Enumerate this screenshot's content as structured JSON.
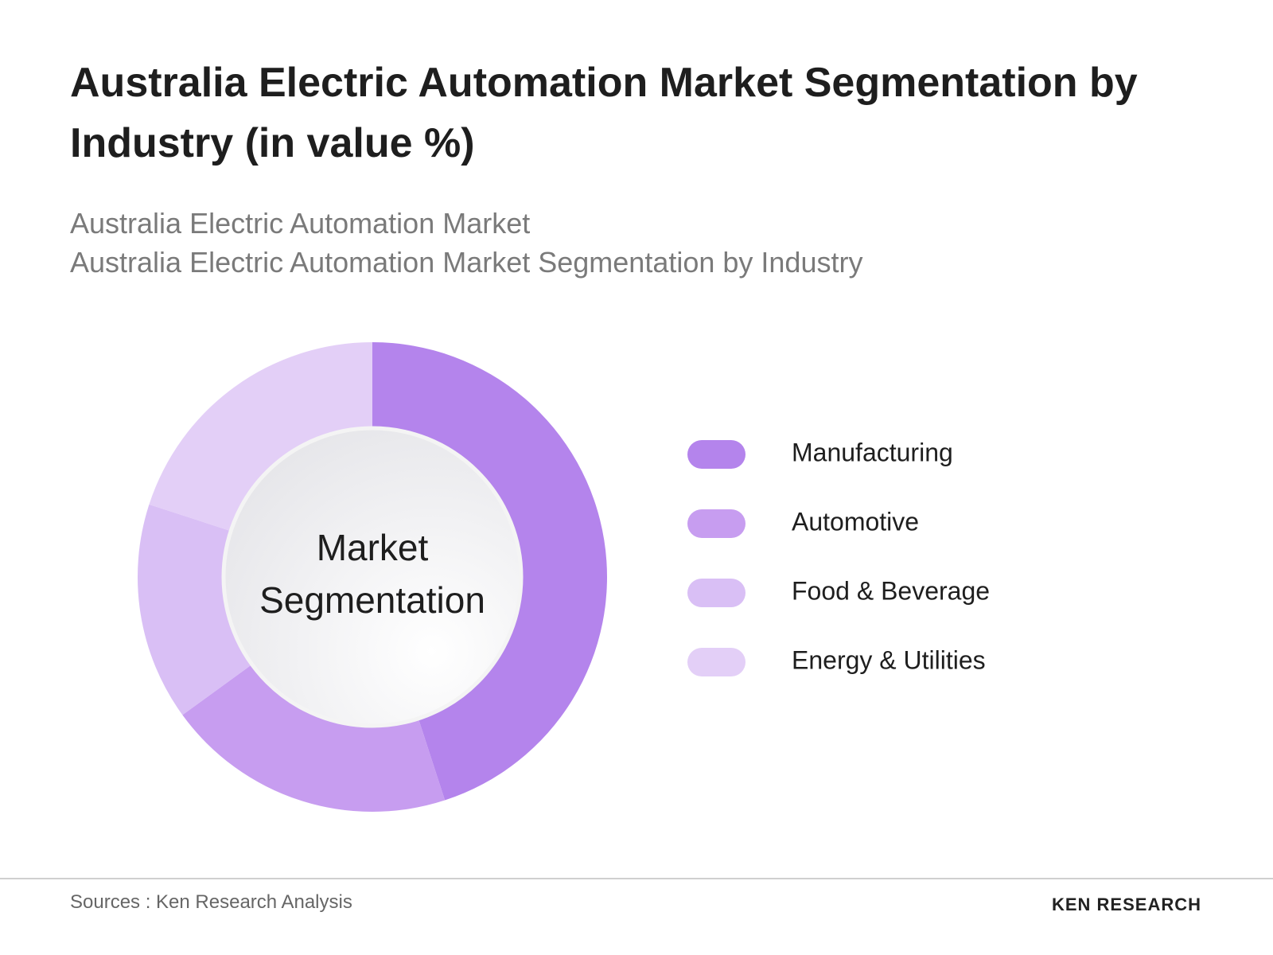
{
  "chart_data": {
    "type": "pie",
    "title": "Australia Electric Automation Market Segmentation by Industry (in value %)",
    "subtitles": [
      "Australia Electric Automation Market",
      "Australia Electric Automation Market Segmentation by Industry"
    ],
    "categories": [
      "Manufacturing",
      "Automotive",
      "Food & Beverage",
      "Energy & Utilities"
    ],
    "values": [
      45,
      20,
      15,
      20
    ],
    "colors": [
      "#b484ec",
      "#c79df0",
      "#d9bff5",
      "#e3cff7"
    ],
    "center_label": "Market Segmentation",
    "source": "Sources : Ken Research Analysis",
    "brand": "KEN RESEARCH"
  }
}
